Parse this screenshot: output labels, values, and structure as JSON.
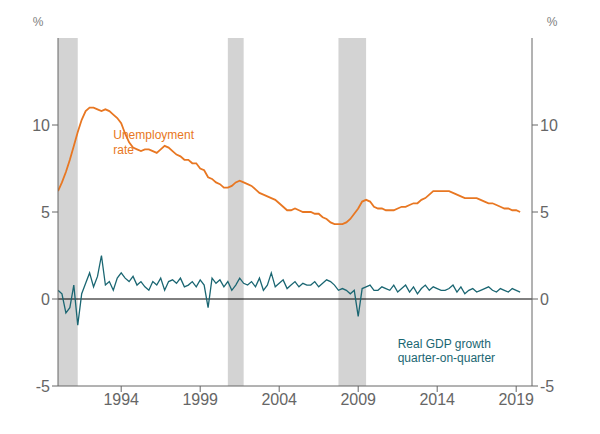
{
  "chart_data": {
    "type": "line",
    "title": "",
    "ylabel": "%",
    "y2label": "%",
    "xlim": [
      1990.0,
      2020.0
    ],
    "xticks": [
      1994,
      1999,
      2004,
      2009,
      2014,
      2019
    ],
    "ylim": [
      -5,
      15
    ],
    "yticks": [
      -5,
      0,
      5,
      10
    ],
    "y2lim": [
      -5,
      15
    ],
    "y2ticks": [
      -5,
      0,
      5,
      10
    ],
    "grid": false,
    "shaded_ranges": [
      [
        1990.0,
        1991.25
      ],
      [
        2000.75,
        2001.75
      ],
      [
        2007.75,
        2009.5
      ]
    ],
    "hlines": [
      0
    ],
    "x": [
      1990.0,
      1990.25,
      1990.5,
      1990.75,
      1991.0,
      1991.25,
      1991.5,
      1991.75,
      1992.0,
      1992.25,
      1992.5,
      1992.75,
      1993.0,
      1993.25,
      1993.5,
      1993.75,
      1994.0,
      1994.25,
      1994.5,
      1994.75,
      1995.0,
      1995.25,
      1995.5,
      1995.75,
      1996.0,
      1996.25,
      1996.5,
      1996.75,
      1997.0,
      1997.25,
      1997.5,
      1997.75,
      1998.0,
      1998.25,
      1998.5,
      1998.75,
      1999.0,
      1999.25,
      1999.5,
      1999.75,
      2000.0,
      2000.25,
      2000.5,
      2000.75,
      2001.0,
      2001.25,
      2001.5,
      2001.75,
      2002.0,
      2002.25,
      2002.5,
      2002.75,
      2003.0,
      2003.25,
      2003.5,
      2003.75,
      2004.0,
      2004.25,
      2004.5,
      2004.75,
      2005.0,
      2005.25,
      2005.5,
      2005.75,
      2006.0,
      2006.25,
      2006.5,
      2006.75,
      2007.0,
      2007.25,
      2007.5,
      2007.75,
      2008.0,
      2008.25,
      2008.5,
      2008.75,
      2009.0,
      2009.25,
      2009.5,
      2009.75,
      2010.0,
      2010.25,
      2010.5,
      2010.75,
      2011.0,
      2011.25,
      2011.5,
      2011.75,
      2012.0,
      2012.25,
      2012.5,
      2012.75,
      2013.0,
      2013.25,
      2013.5,
      2013.75,
      2014.0,
      2014.25,
      2014.5,
      2014.75,
      2015.0,
      2015.25,
      2015.5,
      2015.75,
      2016.0,
      2016.25,
      2016.5,
      2016.75,
      2017.0,
      2017.25,
      2017.5,
      2017.75,
      2018.0,
      2018.25,
      2018.5,
      2018.75,
      2019.0,
      2019.25
    ],
    "series": [
      {
        "name": "Real GDP growth\nquarter-on-quarter",
        "color": "#1a6672",
        "values": [
          0.5,
          0.3,
          -0.8,
          -0.5,
          0.8,
          -1.5,
          0.3,
          0.9,
          1.5,
          0.7,
          1.3,
          2.5,
          0.8,
          1.0,
          0.5,
          1.2,
          1.5,
          1.2,
          1.0,
          1.3,
          0.8,
          1.0,
          0.7,
          0.5,
          1.0,
          0.8,
          1.2,
          0.5,
          1.0,
          1.1,
          0.9,
          1.2,
          0.7,
          0.8,
          1.0,
          0.7,
          1.1,
          0.8,
          -0.5,
          1.2,
          0.9,
          1.1,
          0.7,
          1.0,
          0.5,
          0.8,
          1.2,
          0.9,
          0.8,
          1.0,
          0.7,
          1.2,
          0.5,
          0.8,
          1.5,
          0.7,
          0.9,
          1.1,
          0.6,
          0.8,
          1.0,
          0.7,
          0.9,
          0.8,
          0.8,
          1.0,
          0.7,
          0.9,
          1.1,
          1.0,
          0.8,
          0.5,
          0.6,
          0.5,
          0.3,
          0.5,
          -1.0,
          0.6,
          0.7,
          0.8,
          0.5,
          0.5,
          0.7,
          0.6,
          0.5,
          0.8,
          0.4,
          0.6,
          0.8,
          0.4,
          0.7,
          0.3,
          0.6,
          0.8,
          0.5,
          0.7,
          0.6,
          0.5,
          0.5,
          0.6,
          0.8,
          0.4,
          0.7,
          0.3,
          0.5,
          0.6,
          0.4,
          0.5,
          0.6,
          0.7,
          0.5,
          0.4,
          0.6,
          0.5,
          0.4,
          0.6,
          0.5,
          0.4
        ]
      },
      {
        "name": "Unemployment\nrate",
        "color": "#e87722",
        "values": [
          6.2,
          6.7,
          7.3,
          8.0,
          8.8,
          9.6,
          10.3,
          10.8,
          11.0,
          11.0,
          10.9,
          10.8,
          10.9,
          10.8,
          10.6,
          10.4,
          10.1,
          9.5,
          9.0,
          8.7,
          8.6,
          8.5,
          8.6,
          8.6,
          8.5,
          8.4,
          8.6,
          8.8,
          8.7,
          8.5,
          8.3,
          8.2,
          8.0,
          8.0,
          7.8,
          7.8,
          7.5,
          7.4,
          7.0,
          6.9,
          6.7,
          6.6,
          6.4,
          6.4,
          6.5,
          6.7,
          6.8,
          6.7,
          6.6,
          6.5,
          6.3,
          6.1,
          6.0,
          5.9,
          5.8,
          5.7,
          5.5,
          5.3,
          5.1,
          5.1,
          5.2,
          5.1,
          5.0,
          5.0,
          5.0,
          4.9,
          4.9,
          4.7,
          4.6,
          4.4,
          4.3,
          4.3,
          4.3,
          4.4,
          4.6,
          4.9,
          5.2,
          5.6,
          5.7,
          5.6,
          5.3,
          5.2,
          5.2,
          5.1,
          5.1,
          5.1,
          5.2,
          5.3,
          5.3,
          5.4,
          5.5,
          5.5,
          5.7,
          5.8,
          6.0,
          6.2,
          6.2,
          6.2,
          6.2,
          6.2,
          6.1,
          6.0,
          5.9,
          5.8,
          5.8,
          5.8,
          5.8,
          5.7,
          5.6,
          5.5,
          5.5,
          5.4,
          5.3,
          5.2,
          5.2,
          5.1,
          5.1,
          5.0
        ]
      }
    ],
    "annotations": [
      {
        "text": "Unemployment\nrate",
        "x": 1993.5,
        "y": 9.8,
        "color": "#e87722"
      },
      {
        "text": "Real GDP growth\nquarter-on-quarter",
        "x": 2011.5,
        "y": -2.2,
        "color": "#1a6672"
      }
    ]
  }
}
